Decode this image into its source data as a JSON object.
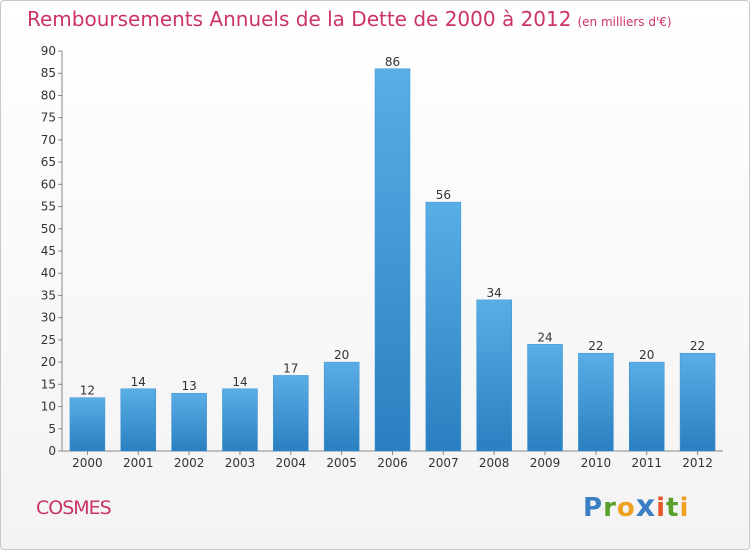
{
  "header": {
    "title": "Remboursements Annuels de la Dette de 2000 à 2012",
    "subtitle": "(en milliers d'€)"
  },
  "footer": {
    "commune": "COSMES",
    "logo": "Proxiti"
  },
  "colors": {
    "accent": "#cc3366",
    "bar_light": "#5aaee6",
    "bar_dark": "#2a7fc0"
  },
  "chart_data": {
    "type": "bar",
    "title": "Remboursements Annuels de la Dette de 2000 à 2012",
    "subtitle": "(en milliers d'€)",
    "xlabel": "",
    "ylabel": "",
    "categories": [
      "2000",
      "2001",
      "2002",
      "2003",
      "2004",
      "2005",
      "2006",
      "2007",
      "2008",
      "2009",
      "2010",
      "2011",
      "2012"
    ],
    "values": [
      12,
      14,
      13,
      14,
      17,
      20,
      86,
      56,
      34,
      24,
      22,
      20,
      22
    ],
    "ylim": [
      0,
      90
    ],
    "yticks": [
      0,
      5,
      10,
      15,
      20,
      25,
      30,
      35,
      40,
      45,
      50,
      55,
      60,
      65,
      70,
      75,
      80,
      85,
      90
    ],
    "grid": false,
    "data_labels": true
  }
}
